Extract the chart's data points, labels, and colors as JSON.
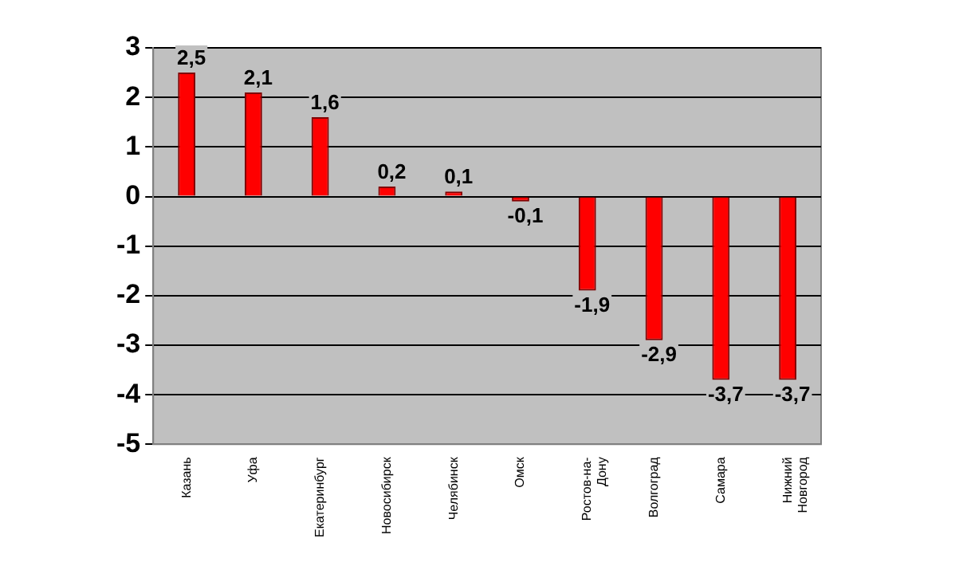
{
  "chart_data": {
    "type": "bar",
    "categories": [
      "Казань",
      "Уфа",
      "Екатеринбург",
      "Новосибирск",
      "Челябинск",
      "Омск",
      "Ростов-на-Дону",
      "Волгоград",
      "Самара",
      "Нижний Новгород"
    ],
    "values": [
      2.5,
      2.1,
      1.6,
      0.2,
      0.1,
      -0.1,
      -1.9,
      -2.9,
      -3.7,
      -3.7
    ],
    "value_labels": [
      "2,5",
      "2,1",
      "1,6",
      "0,2",
      "0,1",
      "-0,1",
      "-1,9",
      "-2,9",
      "-3,7",
      "-3,7"
    ],
    "color": "#ff0000",
    "ylim": [
      -5,
      3
    ],
    "yticks": [
      -5,
      -4,
      -3,
      -2,
      -1,
      0,
      1,
      2,
      3
    ],
    "grid": "y",
    "legend": false
  }
}
